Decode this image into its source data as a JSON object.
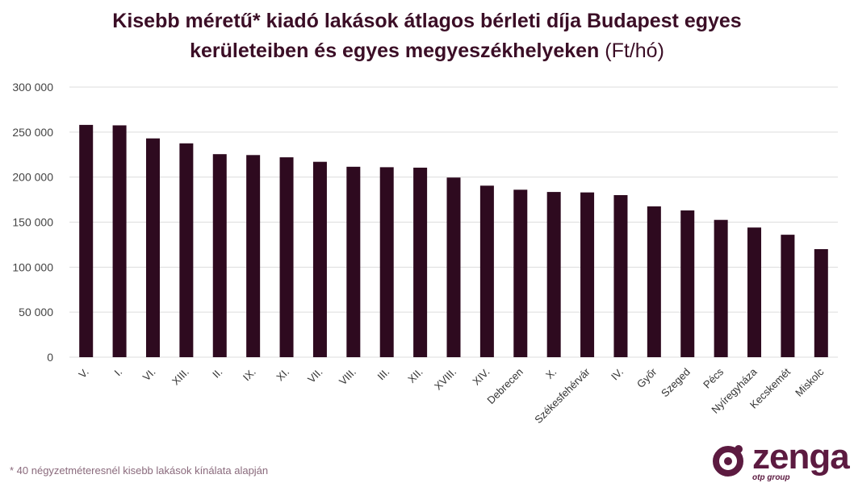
{
  "title": {
    "line1": "Kisebb méretű* kiadó lakások átlagos bérleti díja Budapest egyes",
    "line2": "kerületeiben és egyes megyeszékhelyeken",
    "unit": "(Ft/hó)"
  },
  "footnote": "* 40 négyzetméteresnél kisebb lakások kínálata alapján",
  "logo": {
    "word": "zenga",
    "sub": "otp group"
  },
  "colors": {
    "bar": "#2e0a1f",
    "title": "#3b0e26",
    "grid": "#dddddd",
    "logo": "#5c1a40"
  },
  "chart_data": {
    "type": "bar",
    "categories": [
      "V.",
      "I.",
      "VI.",
      "XIII.",
      "II.",
      "IX.",
      "XI.",
      "VII.",
      "VIII.",
      "III.",
      "XII.",
      "XVIII.",
      "XIV.",
      "Debrecen",
      "X.",
      "Székesfehérvár",
      "IV.",
      "Győr",
      "Szeged",
      "Pécs",
      "Nyíregyháza",
      "Kecskemét",
      "Miskolc"
    ],
    "values": [
      258000,
      257500,
      243000,
      237500,
      225500,
      224500,
      222000,
      217000,
      211500,
      211000,
      210500,
      199500,
      190500,
      186000,
      183500,
      183000,
      180000,
      167500,
      163000,
      152500,
      144000,
      136000,
      120000
    ],
    "ylim": [
      0,
      300000
    ],
    "yticks": [
      0,
      50000,
      100000,
      150000,
      200000,
      250000,
      300000
    ],
    "ytick_labels": [
      "0",
      "50 000",
      "100 000",
      "150 000",
      "200 000",
      "250 000",
      "300 000"
    ],
    "grid": true,
    "xlabel": "",
    "ylabel": ""
  }
}
